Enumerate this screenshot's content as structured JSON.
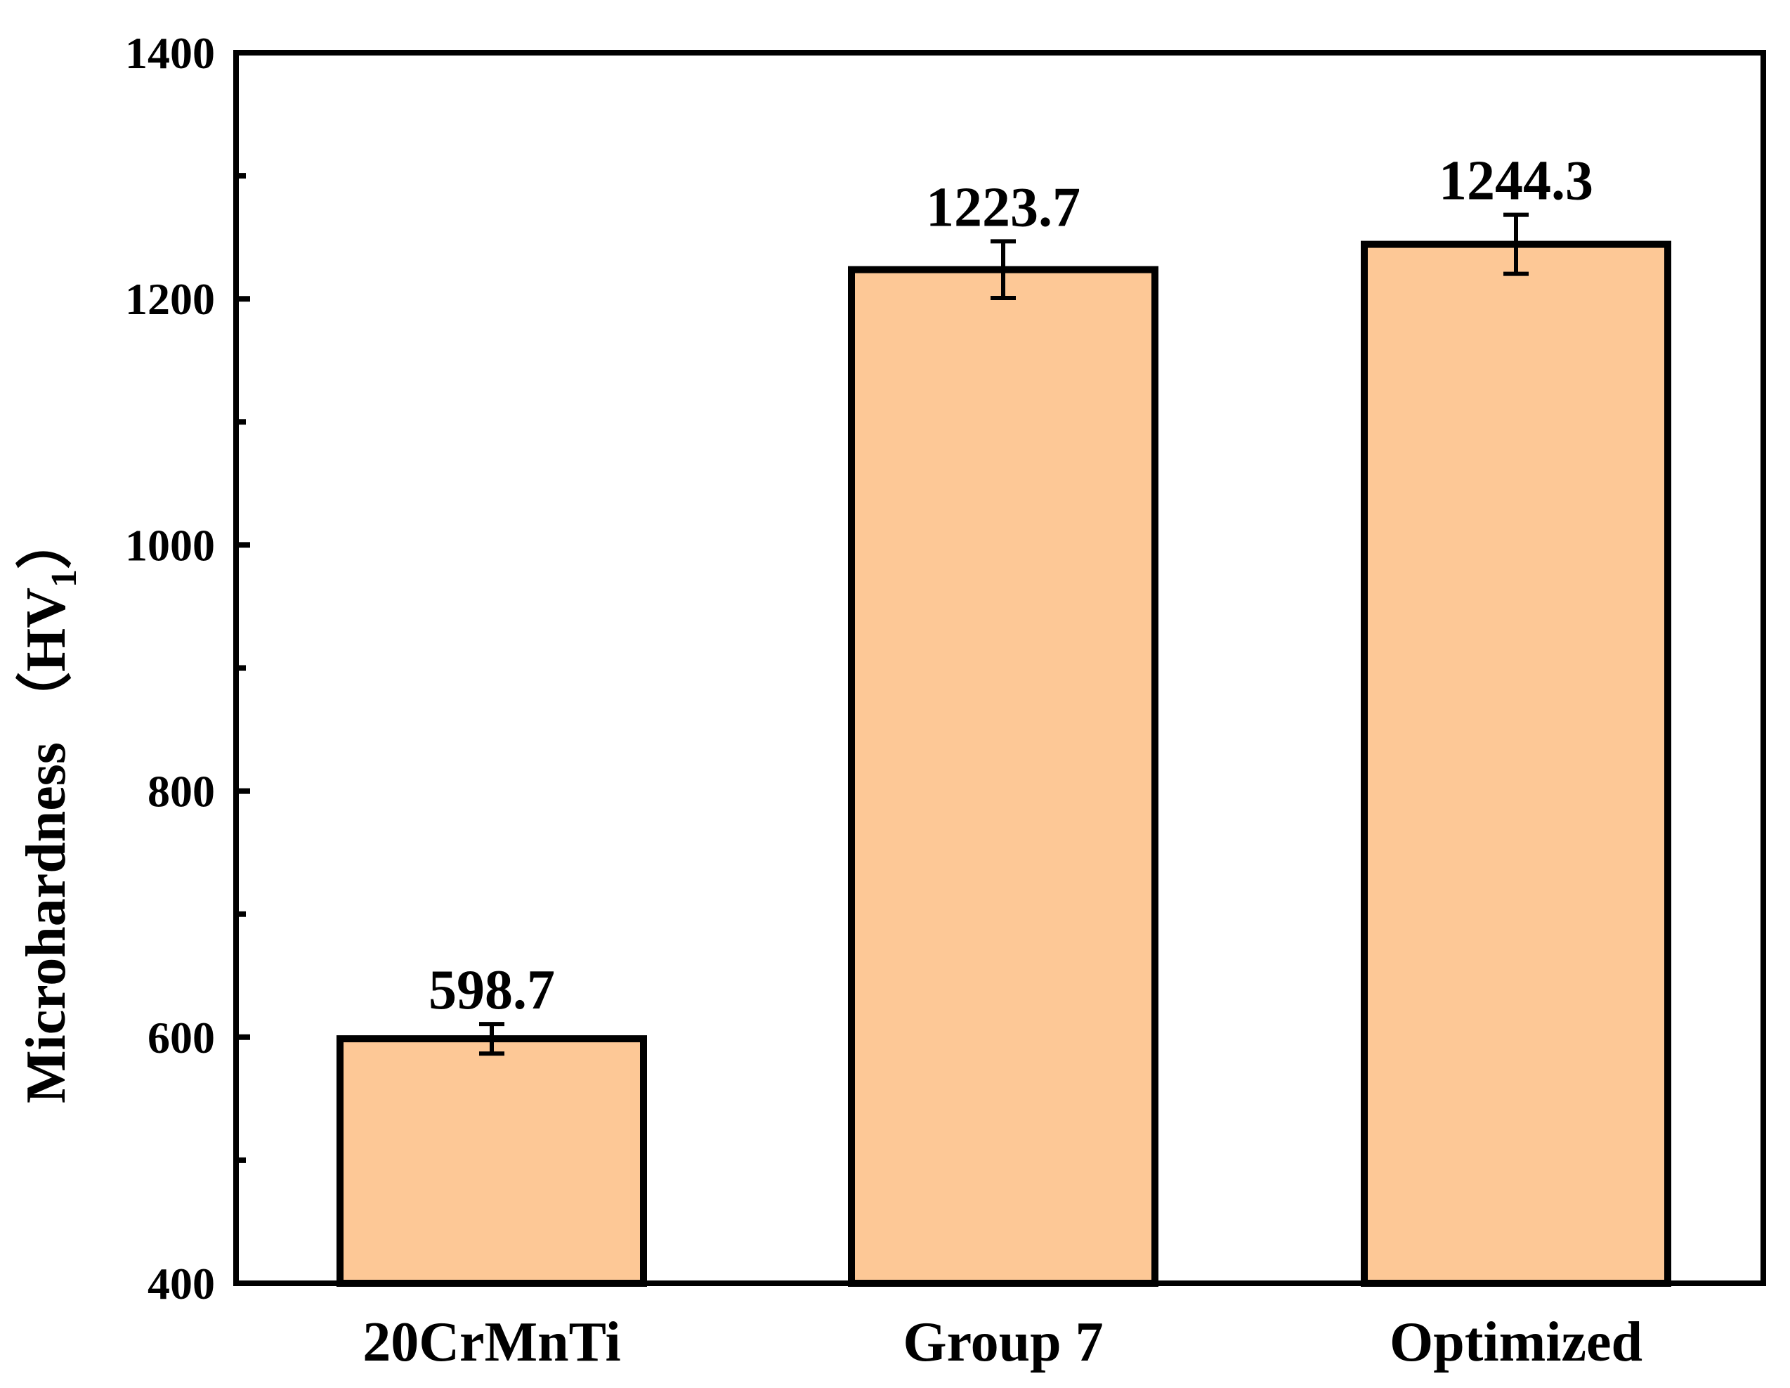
{
  "chart_data": {
    "type": "bar",
    "title": "",
    "xlabel": "",
    "ylabel": {
      "main": "Microhardness （HV",
      "subscript": "1",
      "close": "）"
    },
    "categories": [
      "20CrMnTi",
      "Group 7",
      "Optimized"
    ],
    "values": [
      598.7,
      1223.7,
      1244.3
    ],
    "errors": [
      12,
      23,
      24
    ],
    "data_labels": [
      "598.7",
      "1223.7",
      "1244.3"
    ],
    "ylim": [
      400,
      1400
    ],
    "yticks": [
      400,
      600,
      800,
      1000,
      1200,
      1400
    ],
    "ytick_labels": [
      "400",
      "600",
      "800",
      "1000",
      "1200",
      "1400"
    ],
    "minor_yticks": [
      500,
      700,
      900,
      1100,
      1300
    ],
    "grid": false,
    "legend": "none"
  },
  "colors": {
    "bar_fill": "#FDC896",
    "bar_stroke": "#000000",
    "axis": "#000000",
    "background": "#FFFFFF"
  }
}
